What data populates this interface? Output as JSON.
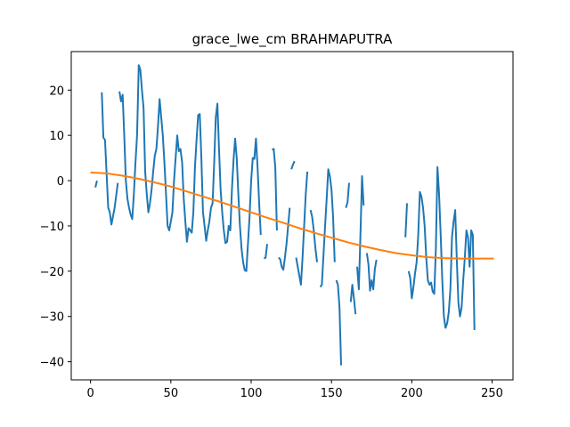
{
  "chart_data": {
    "type": "line",
    "title": "grace_lwe_cm BRAHMAPUTRA",
    "xlabel": "",
    "ylabel": "",
    "xlim": [
      -12,
      263
    ],
    "ylim": [
      -44,
      28.5
    ],
    "xticks": [
      0,
      50,
      100,
      150,
      200,
      250
    ],
    "yticks": [
      -40,
      -30,
      -20,
      -10,
      0,
      10,
      20
    ],
    "grid": false,
    "legend": "none",
    "series": [
      {
        "color": "#1f77b4",
        "segments": [
          [
            [
              3,
              -1.5
            ],
            [
              4,
              0
            ]
          ],
          [
            [
              7,
              19.5
            ],
            [
              8,
              9.5
            ],
            [
              9,
              9
            ],
            [
              11,
              -6
            ],
            [
              12,
              -7
            ],
            [
              13,
              -9.7
            ],
            [
              15,
              -6
            ],
            [
              17,
              -0.5
            ]
          ],
          [
            [
              18,
              19.7
            ],
            [
              19,
              17.5
            ],
            [
              20,
              19
            ],
            [
              21,
              10
            ],
            [
              22,
              0
            ],
            [
              23,
              -4
            ],
            [
              24,
              -6
            ],
            [
              25,
              -7.5
            ],
            [
              26,
              -8.5
            ],
            [
              27,
              -3
            ],
            [
              28,
              4
            ],
            [
              29,
              10
            ],
            [
              30,
              25.5
            ],
            [
              31,
              24.5
            ],
            [
              32,
              20
            ],
            [
              33,
              16
            ],
            [
              34,
              2
            ],
            [
              35,
              -3
            ],
            [
              36,
              -7
            ],
            [
              37,
              -5
            ],
            [
              38,
              -2
            ],
            [
              39,
              2
            ],
            [
              40,
              5.5
            ],
            [
              41,
              7
            ],
            [
              42,
              12
            ],
            [
              43,
              18
            ],
            [
              44,
              14
            ],
            [
              45,
              10
            ],
            [
              46,
              4
            ],
            [
              47,
              -3
            ],
            [
              48,
              -10
            ],
            [
              49,
              -11
            ],
            [
              50,
              -9
            ],
            [
              51,
              -7
            ],
            [
              52,
              0
            ],
            [
              53,
              5
            ],
            [
              54,
              10
            ],
            [
              55,
              6.5
            ],
            [
              56,
              7
            ],
            [
              57,
              4
            ],
            [
              58,
              -4
            ],
            [
              59,
              -9
            ],
            [
              60,
              -13.5
            ],
            [
              61,
              -10.5
            ],
            [
              62,
              -11
            ],
            [
              63,
              -11.5
            ],
            [
              64,
              -7
            ],
            [
              65,
              3
            ],
            [
              66,
              9
            ],
            [
              67,
              14.5
            ],
            [
              68,
              14.7
            ],
            [
              69,
              5
            ],
            [
              70,
              -7
            ],
            [
              71,
              -10
            ],
            [
              72,
              -13.3
            ],
            [
              73,
              -11
            ],
            [
              74,
              -9
            ],
            [
              75,
              -6
            ],
            [
              76,
              -5
            ],
            [
              77,
              4
            ],
            [
              78,
              14
            ],
            [
              79,
              17
            ],
            [
              80,
              7
            ],
            [
              81,
              -2
            ],
            [
              82,
              -7
            ],
            [
              83,
              -11
            ],
            [
              84,
              -13.8
            ],
            [
              85,
              -13.5
            ],
            [
              86,
              -10
            ],
            [
              87,
              -11
            ],
            [
              88,
              -2
            ],
            [
              89,
              4.5
            ],
            [
              90,
              9.3
            ],
            [
              91,
              5
            ],
            [
              92,
              -3
            ],
            [
              93,
              -10
            ],
            [
              94,
              -15
            ],
            [
              95,
              -18
            ],
            [
              96,
              -19.8
            ],
            [
              97,
              -20
            ],
            [
              98,
              -14
            ],
            [
              99,
              -8
            ],
            [
              100,
              0
            ],
            [
              101,
              5
            ],
            [
              102,
              4.8
            ],
            [
              103,
              9.3
            ],
            [
              104,
              3
            ],
            [
              105,
              -5
            ],
            [
              106,
              -12
            ]
          ],
          [
            [
              108,
              -17.2
            ],
            [
              109,
              -17
            ],
            [
              110,
              -14
            ]
          ],
          [
            [
              113,
              6.8
            ],
            [
              114,
              7
            ],
            [
              115,
              3
            ],
            [
              116,
              -11
            ]
          ],
          [
            [
              117,
              -17
            ],
            [
              118,
              -17.3
            ],
            [
              119,
              -19
            ],
            [
              120,
              -19.7
            ],
            [
              121,
              -17
            ],
            [
              122,
              -14
            ],
            [
              123,
              -10
            ],
            [
              124,
              -6
            ]
          ],
          [
            [
              125,
              2.5
            ],
            [
              126,
              3.5
            ],
            [
              127,
              4.3
            ]
          ],
          [
            [
              128,
              -17
            ],
            [
              129,
              -19
            ],
            [
              130,
              -21
            ],
            [
              131,
              -23
            ],
            [
              132,
              -17
            ],
            [
              133,
              -10
            ],
            [
              134,
              -3
            ],
            [
              135,
              2
            ]
          ],
          [
            [
              137,
              -6.5
            ],
            [
              138,
              -8
            ],
            [
              139,
              -11
            ],
            [
              140,
              -15
            ],
            [
              141,
              -18
            ]
          ],
          [
            [
              143,
              -23.5
            ],
            [
              144,
              -23
            ],
            [
              145,
              -16.5
            ],
            [
              146,
              -10
            ],
            [
              147,
              -4
            ],
            [
              148,
              2.5
            ],
            [
              149,
              1
            ],
            [
              150,
              -2
            ],
            [
              151,
              -8
            ],
            [
              152,
              -18
            ]
          ],
          [
            [
              153,
              -22
            ],
            [
              154,
              -23
            ],
            [
              155,
              -28
            ],
            [
              156,
              -40.8
            ]
          ],
          [
            [
              159,
              -6
            ],
            [
              160,
              -4.8
            ],
            [
              161,
              -0.5
            ]
          ],
          [
            [
              162,
              -26.8
            ],
            [
              163,
              -23
            ],
            [
              164,
              -26
            ],
            [
              165,
              -29.5
            ]
          ],
          [
            [
              166,
              -19
            ],
            [
              167,
              -24
            ],
            [
              168,
              -12
            ],
            [
              169,
              1
            ],
            [
              170,
              -5.5
            ]
          ],
          [
            [
              172,
              -16
            ],
            [
              173,
              -18.5
            ],
            [
              174,
              -24.3
            ],
            [
              175,
              -22
            ],
            [
              176,
              -24
            ],
            [
              177,
              -19.5
            ],
            [
              178,
              -17.5
            ]
          ],
          [
            [
              196,
              -12.5
            ],
            [
              197,
              -5
            ]
          ],
          [
            [
              198,
              -20
            ],
            [
              199,
              -21.5
            ],
            [
              200,
              -26
            ],
            [
              201,
              -23.5
            ],
            [
              202,
              -20.5
            ],
            [
              203,
              -18
            ],
            [
              204,
              -12
            ],
            [
              205,
              -2.5
            ],
            [
              206,
              -3.5
            ],
            [
              207,
              -6
            ],
            [
              208,
              -10
            ],
            [
              209,
              -17
            ],
            [
              210,
              -22
            ],
            [
              211,
              -23
            ],
            [
              212,
              -22.5
            ],
            [
              213,
              -24.5
            ],
            [
              214,
              -25
            ],
            [
              215,
              -15
            ],
            [
              216,
              3
            ],
            [
              217,
              -3
            ],
            [
              218,
              -12
            ],
            [
              219,
              -22
            ],
            [
              220,
              -30
            ],
            [
              221,
              -32.5
            ],
            [
              222,
              -31.5
            ],
            [
              223,
              -29
            ],
            [
              224,
              -24
            ],
            [
              225,
              -12.5
            ],
            [
              226,
              -9
            ],
            [
              227,
              -6.5
            ],
            [
              228,
              -17.5
            ],
            [
              229,
              -27
            ],
            [
              230,
              -30
            ],
            [
              231,
              -28
            ],
            [
              232,
              -22
            ],
            [
              233,
              -17
            ],
            [
              234,
              -11
            ],
            [
              235,
              -12.5
            ],
            [
              236,
              -19
            ],
            [
              237,
              -11
            ],
            [
              238,
              -12
            ],
            [
              239,
              -33
            ]
          ]
        ]
      },
      {
        "color": "#ff7f0e",
        "points": [
          [
            0,
            1.8
          ],
          [
            10,
            1.6
          ],
          [
            20,
            1.1
          ],
          [
            30,
            0.4
          ],
          [
            40,
            -0.4
          ],
          [
            50,
            -1.3
          ],
          [
            60,
            -2.4
          ],
          [
            70,
            -3.5
          ],
          [
            80,
            -4.6
          ],
          [
            90,
            -5.8
          ],
          [
            100,
            -7.0
          ],
          [
            110,
            -8.2
          ],
          [
            120,
            -9.3
          ],
          [
            130,
            -10.5
          ],
          [
            140,
            -11.6
          ],
          [
            150,
            -12.6
          ],
          [
            160,
            -13.6
          ],
          [
            170,
            -14.5
          ],
          [
            180,
            -15.3
          ],
          [
            190,
            -16.0
          ],
          [
            200,
            -16.5
          ],
          [
            210,
            -16.9
          ],
          [
            220,
            -17.1
          ],
          [
            230,
            -17.2
          ],
          [
            240,
            -17.2
          ],
          [
            251,
            -17.2
          ]
        ]
      }
    ]
  }
}
